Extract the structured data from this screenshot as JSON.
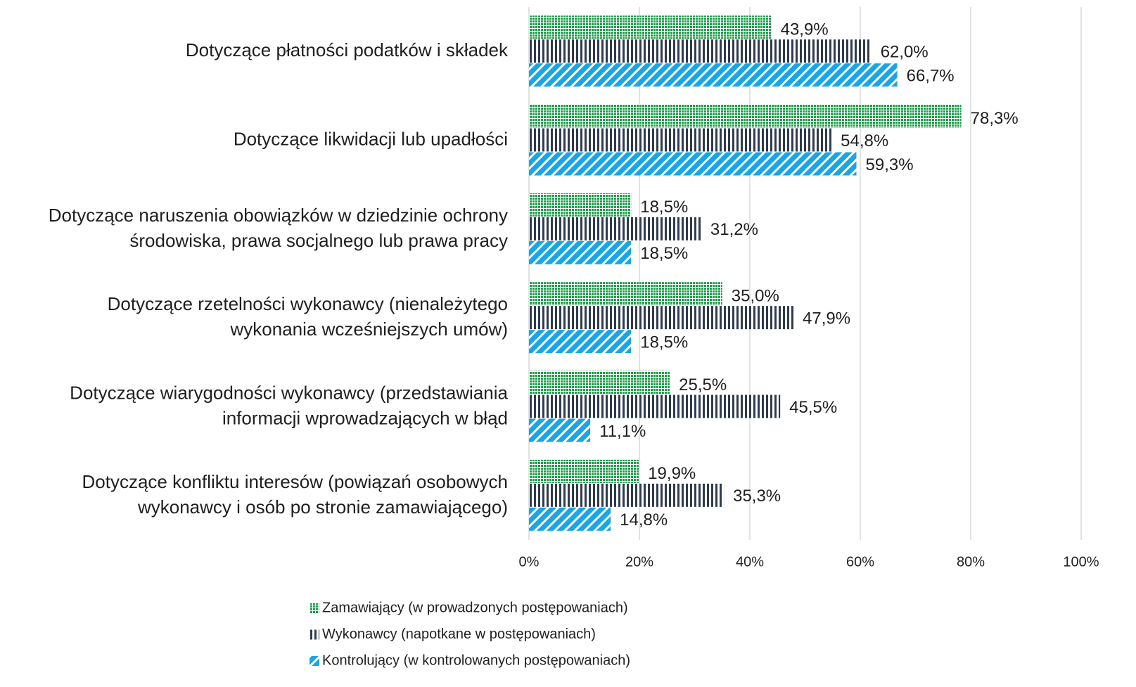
{
  "chart_data": {
    "type": "bar",
    "orientation": "horizontal",
    "categories": [
      "Dotyczące płatności podatków i składek",
      "Dotyczące likwidacji lub upadłości",
      "Dotyczące naruszenia obowiązków w dziedzinie ochrony\nśrodowiska, prawa socjalnego lub prawa pracy",
      "Dotyczące rzetelności wykonawcy (nienależytego\nwykonania wcześniejszych umów)",
      "Dotyczące wiarygodności wykonawcy (przedstawiania\ninformacji wprowadzających w błąd",
      "Dotyczące konfliktu interesów (powiązań osobowych\nwykonawcy i osób po stronie zamawiającego)"
    ],
    "series": [
      {
        "name": "Zamawiający (w prowadzonych postępowaniach)",
        "color": "#1e9e4a",
        "values": [
          43.9,
          78.3,
          18.5,
          35.0,
          25.5,
          19.9
        ],
        "value_labels": [
          "43,9%",
          "78,3%",
          "18,5%",
          "35,0%",
          "25,5%",
          "19,9%"
        ]
      },
      {
        "name": "Wykonawcy (napotkane w postępowaniach)",
        "color": "#2f3b4e",
        "values": [
          62.0,
          54.8,
          31.2,
          47.9,
          45.5,
          35.3
        ],
        "value_labels": [
          "62,0%",
          "54,8%",
          "31,2%",
          "47,9%",
          "45,5%",
          "35,3%"
        ]
      },
      {
        "name": "Kontrolujący (w kontrolowanych postępowaniach)",
        "color": "#19a6e6",
        "values": [
          66.7,
          59.3,
          18.5,
          18.5,
          11.1,
          14.8
        ],
        "value_labels": [
          "66,7%",
          "59,3%",
          "18,5%",
          "18,5%",
          "11,1%",
          "14,8%"
        ]
      }
    ],
    "xlim": [
      0,
      100
    ],
    "xticks": [
      {
        "value": 0,
        "label": "0%"
      },
      {
        "value": 20,
        "label": "20%"
      },
      {
        "value": 40,
        "label": "40%"
      },
      {
        "value": 60,
        "label": "60%"
      },
      {
        "value": 80,
        "label": "80%"
      },
      {
        "value": 100,
        "label": "100%"
      }
    ],
    "grid": true,
    "legend": "bottom"
  }
}
